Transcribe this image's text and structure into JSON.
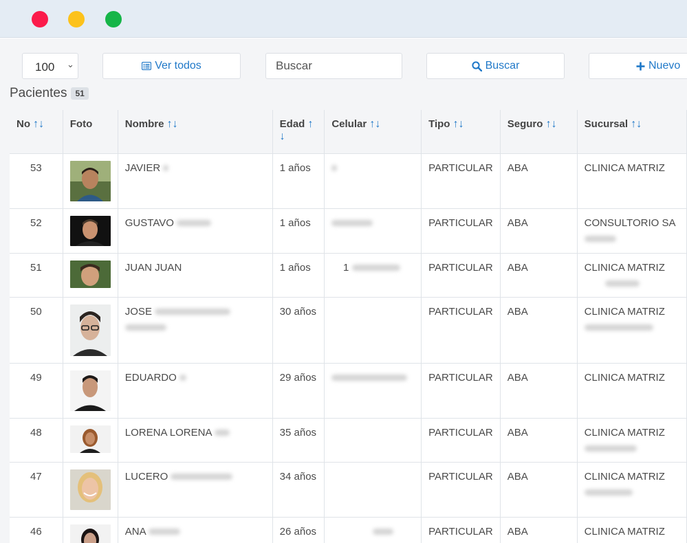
{
  "window": {
    "controls": [
      "close",
      "minimize",
      "maximize"
    ]
  },
  "toolbar": {
    "page_size": "100",
    "ver_todos_label": "Ver todos",
    "search_placeholder": "Buscar",
    "buscar_label": "Buscar",
    "nuevo_label": "Nuevo"
  },
  "heading": {
    "title": "Pacientes",
    "count": "51"
  },
  "table": {
    "columns": {
      "no": "No",
      "foto": "Foto",
      "nombre": "Nombre",
      "edad": "Edad",
      "celular": "Celular",
      "tipo": "Tipo",
      "seguro": "Seguro",
      "sucursal": "Sucursal"
    },
    "rows": [
      {
        "no": "53",
        "nombre": "JAVIER",
        "edad": "1 años",
        "celular": "",
        "tipo": "PARTICULAR",
        "seguro": "ABA",
        "sucursal": "CLINICA MATRIZ"
      },
      {
        "no": "52",
        "nombre": "GUSTAVO",
        "edad": "1 años",
        "celular": "",
        "tipo": "PARTICULAR",
        "seguro": "ABA",
        "sucursal": "CONSULTORIO SA"
      },
      {
        "no": "51",
        "nombre": "JUAN JUAN",
        "edad": "1 años",
        "celular": "1",
        "tipo": "PARTICULAR",
        "seguro": "ABA",
        "sucursal": "CLINICA MATRIZ"
      },
      {
        "no": "50",
        "nombre": "JOSE",
        "edad": "30 años",
        "celular": "",
        "tipo": "PARTICULAR",
        "seguro": "ABA",
        "sucursal": "CLINICA MATRIZ"
      },
      {
        "no": "49",
        "nombre": "EDUARDO",
        "edad": "29 años",
        "celular": "",
        "tipo": "PARTICULAR",
        "seguro": "ABA",
        "sucursal": "CLINICA MATRIZ"
      },
      {
        "no": "48",
        "nombre": "LORENA LORENA",
        "edad": "35 años",
        "celular": "",
        "tipo": "PARTICULAR",
        "seguro": "ABA",
        "sucursal": "CLINICA MATRIZ"
      },
      {
        "no": "47",
        "nombre": "LUCERO",
        "edad": "34 años",
        "celular": "",
        "tipo": "PARTICULAR",
        "seguro": "ABA",
        "sucursal": "CLINICA MATRIZ"
      },
      {
        "no": "46",
        "nombre": "ANA",
        "edad": "26 años",
        "celular": "",
        "tipo": "PARTICULAR",
        "seguro": "ABA",
        "sucursal": "CLINICA MATRIZ"
      }
    ]
  },
  "colors": {
    "accent": "#1f78c8",
    "close": "#fb1b4b",
    "minimize": "#fcc21b",
    "maximize": "#16b548"
  }
}
